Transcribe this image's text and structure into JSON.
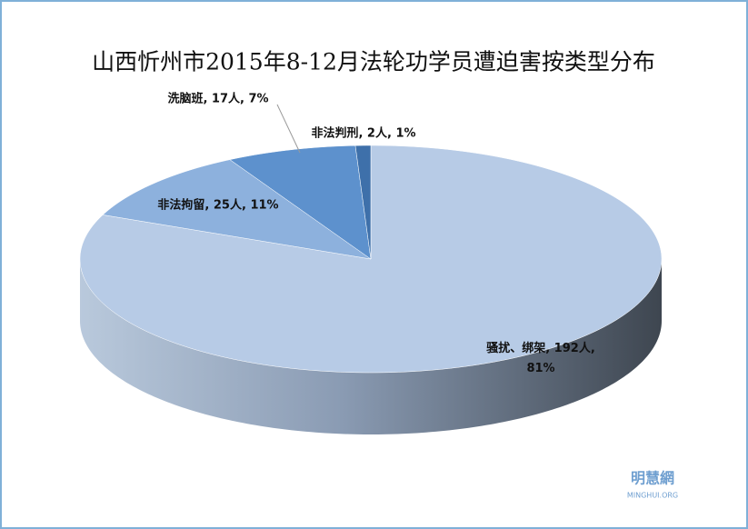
{
  "chart_data": {
    "type": "pie",
    "title": "山西忻州市2015年8-12月法轮功学员遭迫害按类型分布",
    "values": [
      192,
      25,
      17,
      2
    ],
    "value_labels": [
      "骚扰、绑架, 192人, 81%",
      "非法拘留, 25人, 11%",
      "洗脑班, 17人, 7%",
      "非法判刑, 2人, 1%"
    ],
    "colors": [
      "#b7cbe6",
      "#8db1dd",
      "#5d91cd",
      "#3e70aa"
    ],
    "watermark": {
      "name": "明慧網",
      "site": "MINGHUI.ORG"
    }
  }
}
